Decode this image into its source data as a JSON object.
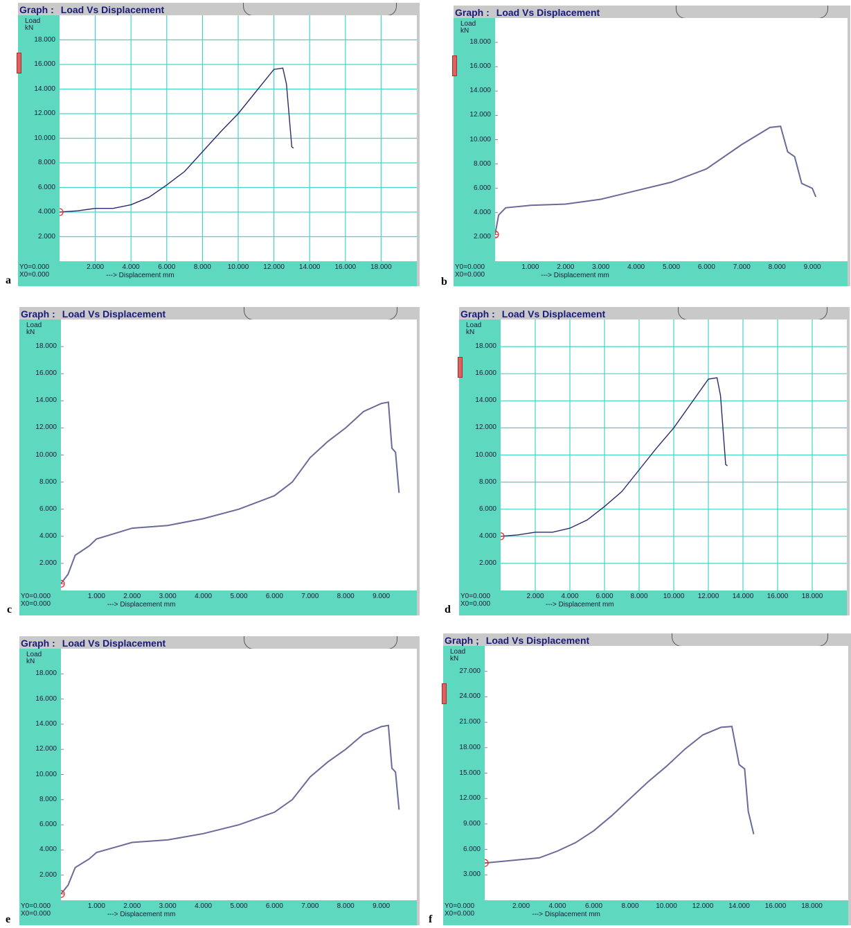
{
  "panels": [
    {
      "letter": "a",
      "graph_label": "Graph :",
      "graph_title": "Load Vs Displacement",
      "y_label_top": "Load",
      "y_label_unit": "kN",
      "y0_text": "Y0=0.000",
      "x0_text": "X0=0.000",
      "x_axis_text": "---> Displacement  mm",
      "chart_data": {
        "type": "line",
        "title": "Load Vs Displacement",
        "xlabel": "Displacement mm",
        "ylabel": "Load kN",
        "xlim": [
          0,
          20
        ],
        "ylim": [
          0,
          20
        ],
        "grid": true,
        "y_ticks": [
          "18.000",
          "16.000",
          "14.000",
          "12.000",
          "10.000",
          "8.000",
          "6.000",
          "4.000",
          "2.000"
        ],
        "y_tick_values": [
          18,
          16,
          14,
          12,
          10,
          8,
          6,
          4,
          2
        ],
        "x_ticks": [
          "2.000",
          "4.000",
          "6.000",
          "8.000",
          "10.000",
          "12.000",
          "14.000",
          "16.000",
          "18.000"
        ],
        "x_tick_values": [
          2,
          4,
          6,
          8,
          10,
          12,
          14,
          16,
          18
        ],
        "series": [
          {
            "x": [
              0,
              1,
              2,
              3,
              4,
              5,
              6,
              7,
              8,
              9,
              10,
              11,
              12,
              12.5,
              12.7,
              13.0,
              13.1
            ],
            "y": [
              4.0,
              4.1,
              4.3,
              4.3,
              4.6,
              5.2,
              6.2,
              7.3,
              8.9,
              10.5,
              12.0,
              13.8,
              15.6,
              15.7,
              14.4,
              9.3,
              9.2
            ]
          }
        ]
      }
    },
    {
      "letter": "b",
      "graph_label": "Graph :",
      "graph_title": "Load Vs Displacement",
      "y_label_top": "Load",
      "y_label_unit": "kN",
      "y0_text": "Y0=0.000",
      "x0_text": "X0=0.000",
      "x_axis_text": "---> Displacement  mm",
      "chart_data": {
        "type": "line",
        "title": "Load Vs Displacement",
        "xlabel": "Displacement mm",
        "ylabel": "Load kN",
        "xlim": [
          0,
          10
        ],
        "ylim": [
          0,
          20
        ],
        "grid": false,
        "y_ticks": [
          "18.000",
          "16.000",
          "14.000",
          "12.000",
          "10.000",
          "8.000",
          "6.000",
          "4.000",
          "2.000"
        ],
        "y_tick_values": [
          18,
          16,
          14,
          12,
          10,
          8,
          6,
          4,
          2
        ],
        "x_ticks": [
          "1.000",
          "2.000",
          "3.000",
          "4.000",
          "5.000",
          "6.000",
          "7.000",
          "8.000",
          "9.000"
        ],
        "x_tick_values": [
          1,
          2,
          3,
          4,
          5,
          6,
          7,
          8,
          9
        ],
        "series": [
          {
            "x": [
              0,
              0.1,
              0.3,
              1.0,
              2.0,
              3.0,
              4.0,
              5.0,
              6.0,
              7.0,
              7.8,
              8.1,
              8.3,
              8.5,
              8.7,
              9.0,
              9.1
            ],
            "y": [
              2.2,
              3.8,
              4.4,
              4.6,
              4.7,
              5.1,
              5.8,
              6.5,
              7.6,
              9.6,
              11.0,
              11.1,
              9.0,
              8.6,
              6.4,
              6.0,
              5.3
            ]
          }
        ]
      }
    },
    {
      "letter": "c",
      "graph_label": "Graph :",
      "graph_title": "Load Vs Displacement",
      "y_label_top": "Load",
      "y_label_unit": "kN",
      "y0_text": "Y0=0.000",
      "x0_text": "X0=0.000",
      "x_axis_text": "---> Displacement  mm",
      "chart_data": {
        "type": "line",
        "title": "Load Vs Displacement",
        "xlabel": "Displacement mm",
        "ylabel": "Load kN",
        "xlim": [
          0,
          10
        ],
        "ylim": [
          0,
          20
        ],
        "grid": false,
        "y_ticks": [
          "18.000",
          "16.000",
          "14.000",
          "12.000",
          "10.000",
          "8.000",
          "6.000",
          "4.000",
          "2.000"
        ],
        "y_tick_values": [
          18,
          16,
          14,
          12,
          10,
          8,
          6,
          4,
          2
        ],
        "x_ticks": [
          "1.000",
          "2.000",
          "3.000",
          "4.000",
          "5.000",
          "6.000",
          "7.000",
          "8.000",
          "9.000"
        ],
        "x_tick_values": [
          1,
          2,
          3,
          4,
          5,
          6,
          7,
          8,
          9
        ],
        "series": [
          {
            "x": [
              0,
              0.2,
              0.4,
              0.8,
              1.0,
              1.5,
              2.0,
              3.0,
              4.0,
              5.0,
              6.0,
              6.5,
              7.0,
              7.5,
              8.0,
              8.5,
              9.0,
              9.2,
              9.3,
              9.4,
              9.5
            ],
            "y": [
              0.5,
              1.2,
              2.6,
              3.3,
              3.8,
              4.2,
              4.6,
              4.8,
              5.3,
              6.0,
              7.0,
              8.0,
              9.8,
              11.0,
              12.0,
              13.2,
              13.8,
              13.9,
              10.5,
              10.2,
              7.2
            ]
          }
        ]
      }
    },
    {
      "letter": "d",
      "graph_label": "Graph :",
      "graph_title": "Load Vs Displacement",
      "y_label_top": "Load",
      "y_label_unit": "kN",
      "y0_text": "Y0=0.000",
      "x0_text": "X0=0.000",
      "x_axis_text": "---> Displacement  mm",
      "chart_data": {
        "type": "line",
        "title": "Load Vs Displacement",
        "xlabel": "Displacement mm",
        "ylabel": "Load kN",
        "xlim": [
          0,
          20
        ],
        "ylim": [
          0,
          20
        ],
        "grid": true,
        "y_ticks": [
          "18.000",
          "16.000",
          "14.000",
          "12.000",
          "10.000",
          "8.000",
          "6.000",
          "4.000",
          "2.000"
        ],
        "y_tick_values": [
          18,
          16,
          14,
          12,
          10,
          8,
          6,
          4,
          2
        ],
        "x_ticks": [
          "2.000",
          "4.000",
          "6.000",
          "8.000",
          "10.000",
          "12.000",
          "14.000",
          "16.000",
          "18.000"
        ],
        "x_tick_values": [
          2,
          4,
          6,
          8,
          10,
          12,
          14,
          16,
          18
        ],
        "series": [
          {
            "x": [
              0,
              1,
              2,
              3,
              4,
              5,
              6,
              7,
              8,
              9,
              10,
              11,
              12,
              12.5,
              12.7,
              13.0,
              13.1
            ],
            "y": [
              4.0,
              4.1,
              4.3,
              4.3,
              4.6,
              5.2,
              6.2,
              7.3,
              8.9,
              10.5,
              12.0,
              13.8,
              15.6,
              15.7,
              14.4,
              9.3,
              9.2
            ]
          }
        ]
      }
    },
    {
      "letter": "e",
      "graph_label": "Graph :",
      "graph_title": "Load Vs Displacement",
      "y_label_top": "Load",
      "y_label_unit": "kN",
      "y0_text": "Y0=0.000",
      "x0_text": "X0=0.000",
      "x_axis_text": "---> Displacement  mm",
      "chart_data": {
        "type": "line",
        "title": "Load Vs Displacement",
        "xlabel": "Displacement mm",
        "ylabel": "Load kN",
        "xlim": [
          0,
          10
        ],
        "ylim": [
          0,
          20
        ],
        "grid": false,
        "y_ticks": [
          "18.000",
          "16.000",
          "14.000",
          "12.000",
          "10.000",
          "8.000",
          "6.000",
          "4.000",
          "2.000"
        ],
        "y_tick_values": [
          18,
          16,
          14,
          12,
          10,
          8,
          6,
          4,
          2
        ],
        "x_ticks": [
          "1.000",
          "2.000",
          "3.000",
          "4.000",
          "5.000",
          "6.000",
          "7.000",
          "8.000",
          "9.000"
        ],
        "x_tick_values": [
          1,
          2,
          3,
          4,
          5,
          6,
          7,
          8,
          9
        ],
        "series": [
          {
            "x": [
              0,
              0.2,
              0.4,
              0.8,
              1.0,
              1.5,
              2.0,
              3.0,
              4.0,
              5.0,
              6.0,
              6.5,
              7.0,
              7.5,
              8.0,
              8.5,
              9.0,
              9.2,
              9.3,
              9.4,
              9.5
            ],
            "y": [
              0.5,
              1.2,
              2.6,
              3.3,
              3.8,
              4.2,
              4.6,
              4.8,
              5.3,
              6.0,
              7.0,
              8.0,
              9.8,
              11.0,
              12.0,
              13.2,
              13.8,
              13.9,
              10.5,
              10.2,
              7.2
            ]
          }
        ]
      }
    },
    {
      "letter": "f",
      "graph_label": "Graph ;",
      "graph_title": "Load Vs Displacement",
      "y_label_top": "Load",
      "y_label_unit": "kN",
      "y0_text": "Y0=0.000",
      "x0_text": "X0=0.000",
      "x_axis_text": "---> Displacement  mm",
      "chart_data": {
        "type": "line",
        "title": "Load Vs Displacement",
        "xlabel": "Displacement mm",
        "ylabel": "Load kN",
        "xlim": [
          0,
          20
        ],
        "ylim": [
          0,
          30
        ],
        "grid": false,
        "y_ticks": [
          "27.000",
          "24.000",
          "21.000",
          "18.000",
          "15.000",
          "12.000",
          "9.000",
          "6.000",
          "3.000"
        ],
        "y_tick_values": [
          27,
          24,
          21,
          18,
          15,
          12,
          9,
          6,
          3
        ],
        "x_ticks": [
          "2.000",
          "4.000",
          "6.000",
          "8.000",
          "10.000",
          "12.000",
          "14.000",
          "16.000",
          "18.000"
        ],
        "x_tick_values": [
          2,
          4,
          6,
          8,
          10,
          12,
          14,
          16,
          18
        ],
        "series": [
          {
            "x": [
              0,
              1,
              2,
              3,
              4,
              5,
              6,
              7,
              8,
              9,
              10,
              11,
              12,
              13,
              13.6,
              14.0,
              14.3,
              14.5,
              14.8
            ],
            "y": [
              4.4,
              4.6,
              4.8,
              5.0,
              5.8,
              6.8,
              8.2,
              10.0,
              12.0,
              14.0,
              15.8,
              17.8,
              19.5,
              20.4,
              20.5,
              16.0,
              15.5,
              10.5,
              7.8
            ]
          }
        ]
      }
    }
  ],
  "colors": {
    "frame": "#c9c9c9",
    "strip": "#5fd8c0",
    "grid": "#40d6c8",
    "curve": "#2a2a6a",
    "curve_light": "#6a6a9a",
    "marker": "#e03030",
    "title": "#1a1a7a"
  }
}
